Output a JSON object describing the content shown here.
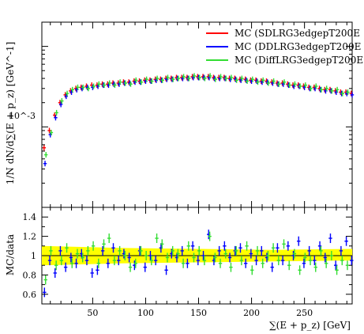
{
  "chart_data": [
    {
      "type": "scatter",
      "panel": "main",
      "ylabel": "1/N dN/d∑(E + p_z) [GeV^-1]",
      "log_y": true,
      "xlim": [
        2,
        295
      ],
      "ylim": [
        0.0001,
        0.02
      ],
      "yticklabels": [
        "10^-3"
      ],
      "legend_position": "top-right",
      "series": [
        {
          "name": "MC (SDLRG3edgepT200E",
          "color": "#ff0000",
          "x": [
            5,
            10,
            15,
            20,
            25,
            30,
            35,
            40,
            45,
            50,
            55,
            60,
            65,
            70,
            75,
            80,
            85,
            90,
            95,
            100,
            105,
            110,
            115,
            120,
            125,
            130,
            135,
            140,
            145,
            150,
            155,
            160,
            165,
            170,
            175,
            180,
            185,
            190,
            195,
            200,
            205,
            210,
            215,
            220,
            225,
            230,
            235,
            240,
            245,
            250,
            255,
            260,
            265,
            270,
            275,
            280,
            285,
            290,
            295
          ],
          "y": [
            0.00055,
            0.0009,
            0.0014,
            0.002,
            0.0025,
            0.0028,
            0.003,
            0.0031,
            0.0032,
            0.0033,
            0.0033,
            0.0034,
            0.0034,
            0.0035,
            0.0035,
            0.0036,
            0.0036,
            0.0037,
            0.0037,
            0.0038,
            0.0038,
            0.0039,
            0.0039,
            0.004,
            0.004,
            0.0041,
            0.0041,
            0.0041,
            0.0042,
            0.0042,
            0.0042,
            0.0042,
            0.0041,
            0.0041,
            0.0041,
            0.004,
            0.004,
            0.0039,
            0.0039,
            0.0038,
            0.0038,
            0.0037,
            0.0037,
            0.0036,
            0.0035,
            0.0035,
            0.0034,
            0.0033,
            0.0033,
            0.0032,
            0.0031,
            0.0031,
            0.003,
            0.0029,
            0.0029,
            0.0028,
            0.0027,
            0.0027,
            0.0026
          ]
        },
        {
          "name": "MC (DDLRG3edgepT200E",
          "color": "#0000ff",
          "x": [
            5,
            10,
            15,
            20,
            25,
            30,
            35,
            40,
            45,
            50,
            55,
            60,
            65,
            70,
            75,
            80,
            85,
            90,
            95,
            100,
            105,
            110,
            115,
            120,
            125,
            130,
            135,
            140,
            145,
            150,
            155,
            160,
            165,
            170,
            175,
            180,
            185,
            190,
            195,
            200,
            205,
            210,
            215,
            220,
            225,
            230,
            235,
            240,
            245,
            250,
            255,
            260,
            265,
            270,
            275,
            280,
            285,
            290,
            295
          ],
          "y": [
            0.00035,
            0.0008,
            0.0013,
            0.0019,
            0.0024,
            0.0027,
            0.0029,
            0.003,
            0.0031,
            0.0031,
            0.0032,
            0.0033,
            0.0033,
            0.0034,
            0.0034,
            0.0035,
            0.0035,
            0.0036,
            0.0036,
            0.0037,
            0.0037,
            0.0038,
            0.0038,
            0.0039,
            0.0039,
            0.004,
            0.004,
            0.004,
            0.0041,
            0.0041,
            0.0041,
            0.0041,
            0.004,
            0.004,
            0.004,
            0.0039,
            0.0039,
            0.0038,
            0.0038,
            0.0037,
            0.0037,
            0.0036,
            0.0036,
            0.0035,
            0.0034,
            0.0034,
            0.0033,
            0.0032,
            0.0032,
            0.0031,
            0.003,
            0.003,
            0.0029,
            0.0028,
            0.0028,
            0.0027,
            0.0026,
            0.0026,
            0.0025
          ]
        },
        {
          "name": "MC (DiffLRG3edgepT200E",
          "color": "#33dd33",
          "x": [
            5,
            10,
            15,
            20,
            25,
            30,
            35,
            40,
            45,
            50,
            55,
            60,
            65,
            70,
            75,
            80,
            85,
            90,
            95,
            100,
            105,
            110,
            115,
            120,
            125,
            130,
            135,
            140,
            145,
            150,
            155,
            160,
            165,
            170,
            175,
            180,
            185,
            190,
            195,
            200,
            205,
            210,
            215,
            220,
            225,
            230,
            235,
            240,
            245,
            250,
            255,
            260,
            265,
            270,
            275,
            280,
            285,
            290,
            295
          ],
          "y": [
            0.00045,
            0.00085,
            0.0015,
            0.0021,
            0.0026,
            0.0029,
            0.0031,
            0.0031,
            0.003,
            0.0032,
            0.0034,
            0.0033,
            0.0035,
            0.0033,
            0.0036,
            0.0035,
            0.0034,
            0.0038,
            0.0036,
            0.0039,
            0.0037,
            0.004,
            0.0038,
            0.0041,
            0.0039,
            0.004,
            0.0042,
            0.004,
            0.0043,
            0.0041,
            0.004,
            0.0043,
            0.0039,
            0.0042,
            0.004,
            0.0041,
            0.0038,
            0.004,
            0.0037,
            0.0039,
            0.0036,
            0.0038,
            0.0035,
            0.0037,
            0.0034,
            0.0036,
            0.0033,
            0.0034,
            0.0032,
            0.0033,
            0.003,
            0.0032,
            0.0029,
            0.003,
            0.0028,
            0.0029,
            0.0026,
            0.0027,
            0.0025
          ]
        }
      ]
    },
    {
      "type": "scatter",
      "panel": "ratio",
      "xlabel": "∑(E + p_z) [GeV]",
      "ylabel": "MC/data",
      "xlim": [
        2,
        295
      ],
      "ylim": [
        0.5,
        1.5
      ],
      "xticklabels": [
        "50",
        "100",
        "150",
        "200",
        "250"
      ],
      "yticklabels": [
        "0.6",
        "0.8",
        "1",
        "1.2",
        "1.4"
      ],
      "reference_line": 1.0,
      "band": {
        "color": "#ffff00",
        "lower": [
          0.9,
          0.92,
          0.93,
          0.94,
          0.95
        ],
        "upper": [
          1.1,
          1.08,
          1.07,
          1.06,
          1.07
        ]
      },
      "series": [
        {
          "name": "MC (DDLRG3edgepT200E",
          "color": "#0000ff",
          "x": [
            5,
            10,
            15,
            20,
            25,
            30,
            35,
            40,
            45,
            50,
            55,
            60,
            65,
            70,
            75,
            80,
            85,
            90,
            95,
            100,
            105,
            110,
            115,
            120,
            125,
            130,
            135,
            140,
            145,
            150,
            155,
            160,
            165,
            170,
            175,
            180,
            185,
            190,
            195,
            200,
            205,
            210,
            215,
            220,
            225,
            230,
            235,
            240,
            245,
            250,
            255,
            260,
            265,
            270,
            275,
            280,
            285,
            290,
            295
          ],
          "y": [
            0.62,
            0.95,
            0.82,
            1.05,
            0.88,
            0.98,
            0.92,
            1.02,
            0.95,
            0.82,
            0.85,
            1.05,
            0.92,
            1.08,
            0.95,
            1.02,
            0.98,
            0.9,
            1.05,
            0.88,
            1.0,
            0.95,
            1.08,
            0.85,
            1.02,
            0.98,
            1.05,
            0.92,
            1.1,
            0.95,
            1.0,
            1.22,
            0.95,
            1.05,
            1.1,
            0.98,
            1.05,
            1.08,
            0.92,
            1.02,
            0.95,
            1.05,
            0.98,
            0.88,
            1.08,
            0.95,
            1.1,
            1.0,
            1.15,
            0.92,
            1.05,
            0.95,
            1.1,
            0.98,
            1.18,
            0.9,
            1.05,
            1.15,
            0.95
          ]
        },
        {
          "name": "MC (DiffLRG3edgepT200E",
          "color": "#33dd33",
          "x": [
            5,
            10,
            15,
            20,
            25,
            30,
            35,
            40,
            45,
            50,
            55,
            60,
            65,
            70,
            75,
            80,
            85,
            90,
            95,
            100,
            105,
            110,
            115,
            120,
            125,
            130,
            135,
            140,
            145,
            150,
            155,
            160,
            165,
            170,
            175,
            180,
            185,
            190,
            195,
            200,
            205,
            210,
            215,
            220,
            225,
            230,
            235,
            240,
            245,
            250,
            255,
            260,
            265,
            270,
            275,
            280,
            285,
            290,
            295
          ],
          "y": [
            0.75,
            1.05,
            0.9,
            0.95,
            1.08,
            0.92,
            1.02,
            0.98,
            1.05,
            1.1,
            0.92,
            1.12,
            1.18,
            0.95,
            1.05,
            1.0,
            0.88,
            0.92,
            1.05,
            1.0,
            0.95,
            1.18,
            1.12,
            0.98,
            1.05,
            1.02,
            0.92,
            1.1,
            0.98,
            1.05,
            0.95,
            1.2,
            0.98,
            0.92,
            1.02,
            0.88,
            1.05,
            0.95,
            1.1,
            0.85,
            1.05,
            0.92,
            1.0,
            1.08,
            0.95,
            1.12,
            0.9,
            1.02,
            0.85,
            0.98,
            0.95,
            0.88,
            1.05,
            0.92,
            1.0,
            0.85,
            0.95,
            0.9,
            1.02
          ]
        }
      ]
    }
  ]
}
